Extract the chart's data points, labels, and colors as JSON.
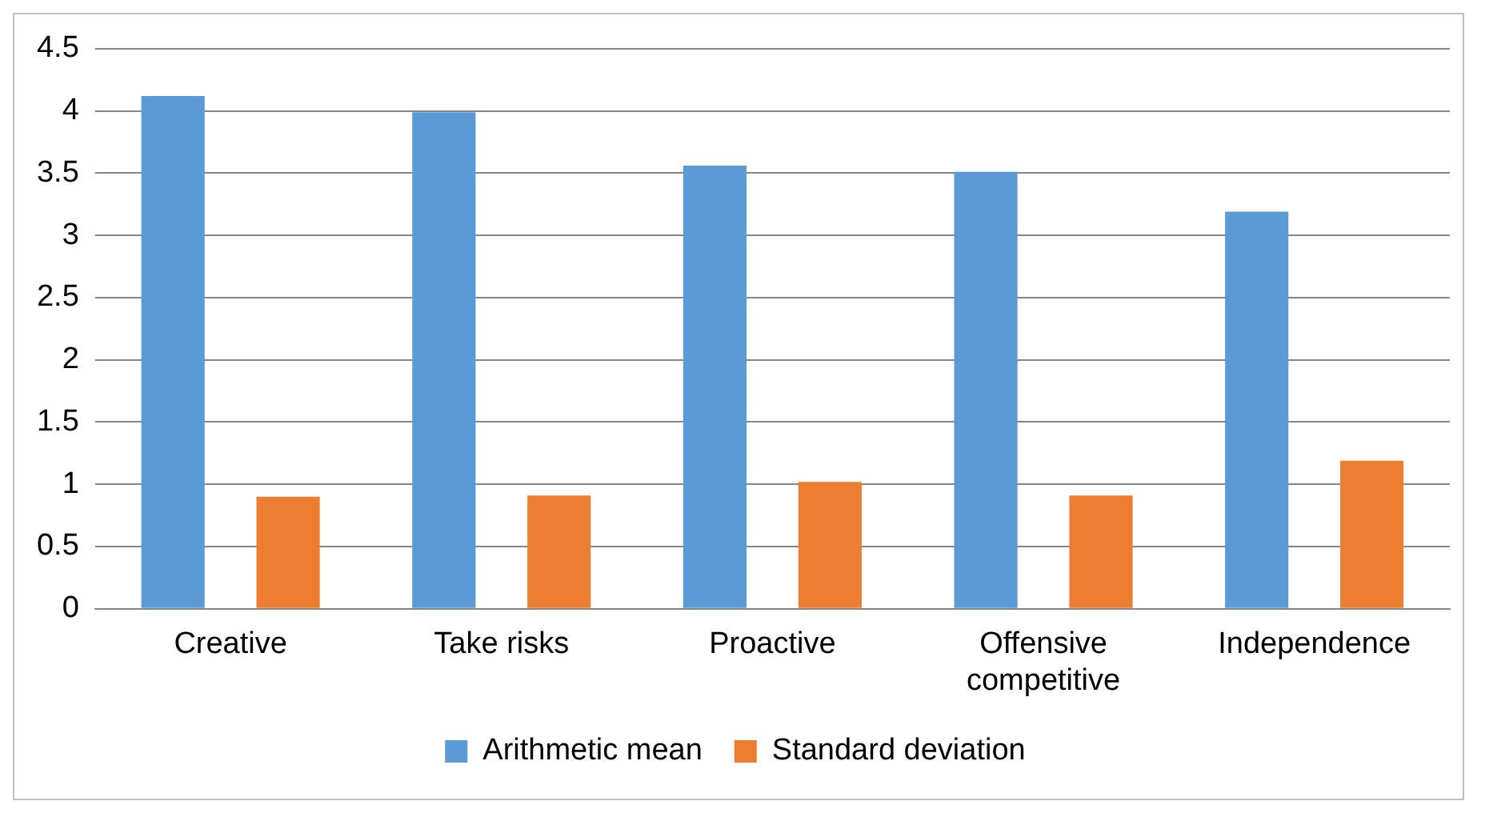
{
  "chart_data": {
    "type": "bar",
    "categories": [
      "Creative",
      "Take risks",
      "Proactive",
      "Offensive competitive",
      "Independence"
    ],
    "series": [
      {
        "name": "Arithmetic mean",
        "color": "#5b9bd5",
        "values": [
          4.12,
          3.99,
          3.56,
          3.51,
          3.19
        ]
      },
      {
        "name": "Standard deviation",
        "color": "#ed7d31",
        "values": [
          0.9,
          0.91,
          1.02,
          0.91,
          1.19
        ]
      }
    ],
    "ylim": [
      0,
      4.5
    ],
    "yticks": [
      0,
      0.5,
      1,
      1.5,
      2,
      2.5,
      3,
      3.5,
      4,
      4.5
    ],
    "grid": "y",
    "legend": "bottom"
  }
}
